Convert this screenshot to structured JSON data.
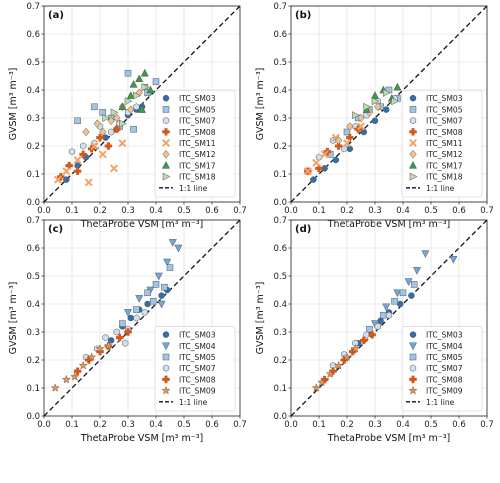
{
  "colors": {
    "ITC_SM03": "#2f6fad",
    "ITC_SM04": "#6fa8dc",
    "ITC_SM05": "#9fc5e8",
    "ITC_SM07": "#cfe0f3",
    "ITC_SM08": "#d2581b",
    "ITC_SM09": "#e8914f",
    "ITC_SM11": "#f0a36b",
    "ITC_SM12": "#f7c08f",
    "ITC_SM17": "#3a9a45",
    "ITC_SM18": "#b9ddb0"
  },
  "markers": {
    "ITC_SM03": "circle",
    "ITC_SM04": "triangle-down",
    "ITC_SM05": "square",
    "ITC_SM07": "hexagon",
    "ITC_SM08": "plus",
    "ITC_SM09": "star",
    "ITC_SM11": "x",
    "ITC_SM12": "diamond",
    "ITC_SM17": "triangle-up",
    "ITC_SM18": "triangle-right"
  },
  "chart_data": [
    {
      "type": "scatter",
      "panel_label": "(a)",
      "xlabel": "ThetaProbe VSM [m³ m⁻³]",
      "ylabel": "GVSM [m³ m⁻³]",
      "xlim": [
        0,
        0.7
      ],
      "ylim": [
        0,
        0.7
      ],
      "ticks": [
        0.0,
        0.1,
        0.2,
        0.3,
        0.4,
        0.5,
        0.6,
        0.7
      ],
      "grid": true,
      "legend_position": "bottom-right",
      "reference_line": "1:1 line",
      "series": [
        {
          "name": "ITC_SM03",
          "x": [
            0.08,
            0.12,
            0.15,
            0.22,
            0.26,
            0.3,
            0.33,
            0.35
          ],
          "y": [
            0.08,
            0.13,
            0.16,
            0.23,
            0.26,
            0.31,
            0.33,
            0.34
          ]
        },
        {
          "name": "ITC_SM05",
          "x": [
            0.12,
            0.18,
            0.21,
            0.24,
            0.27,
            0.3,
            0.36,
            0.4,
            0.37,
            0.32
          ],
          "y": [
            0.29,
            0.34,
            0.32,
            0.3,
            0.27,
            0.46,
            0.41,
            0.43,
            0.39,
            0.26
          ]
        },
        {
          "name": "ITC_SM07",
          "x": [
            0.1,
            0.14,
            0.18,
            0.2,
            0.24,
            0.27,
            0.3,
            0.33
          ],
          "y": [
            0.18,
            0.2,
            0.21,
            0.27,
            0.25,
            0.28,
            0.32,
            0.34
          ]
        },
        {
          "name": "ITC_SM08",
          "x": [
            0.06,
            0.09,
            0.12,
            0.14,
            0.17,
            0.2,
            0.23,
            0.26
          ],
          "y": [
            0.09,
            0.13,
            0.11,
            0.17,
            0.19,
            0.23,
            0.2,
            0.26
          ]
        },
        {
          "name": "ITC_SM11",
          "x": [
            0.05,
            0.08,
            0.12,
            0.16,
            0.18,
            0.21,
            0.25,
            0.28
          ],
          "y": [
            0.08,
            0.11,
            0.15,
            0.07,
            0.2,
            0.17,
            0.12,
            0.21
          ]
        },
        {
          "name": "ITC_SM12",
          "x": [
            0.15,
            0.19,
            0.21,
            0.24,
            0.26,
            0.28,
            0.31,
            0.34
          ],
          "y": [
            0.25,
            0.28,
            0.25,
            0.29,
            0.3,
            0.34,
            0.33,
            0.39
          ]
        },
        {
          "name": "ITC_SM17",
          "x": [
            0.28,
            0.31,
            0.34,
            0.36,
            0.38,
            0.35,
            0.32
          ],
          "y": [
            0.34,
            0.38,
            0.44,
            0.46,
            0.4,
            0.33,
            0.42
          ]
        },
        {
          "name": "ITC_SM18",
          "x": [
            0.22,
            0.25,
            0.28,
            0.3,
            0.33,
            0.36
          ],
          "y": [
            0.3,
            0.32,
            0.28,
            0.36,
            0.38,
            0.41
          ]
        }
      ]
    },
    {
      "type": "scatter",
      "panel_label": "(b)",
      "xlabel": "ThetaProbe VSM [m³ m⁻³]",
      "ylabel": "GVSM [m³ m⁻³]",
      "xlim": [
        0,
        0.7
      ],
      "ylim": [
        0,
        0.7
      ],
      "ticks": [
        0.0,
        0.1,
        0.2,
        0.3,
        0.4,
        0.5,
        0.6,
        0.7
      ],
      "grid": true,
      "legend_position": "bottom-right",
      "reference_line": "1:1 line",
      "series": [
        {
          "name": "ITC_SM03",
          "x": [
            0.08,
            0.12,
            0.16,
            0.21,
            0.26,
            0.3,
            0.34
          ],
          "y": [
            0.08,
            0.12,
            0.15,
            0.19,
            0.25,
            0.29,
            0.33
          ]
        },
        {
          "name": "ITC_SM05",
          "x": [
            0.14,
            0.2,
            0.24,
            0.28,
            0.32,
            0.35,
            0.38
          ],
          "y": [
            0.17,
            0.25,
            0.3,
            0.33,
            0.34,
            0.4,
            0.37
          ]
        },
        {
          "name": "ITC_SM07",
          "x": [
            0.1,
            0.15,
            0.19,
            0.23,
            0.27,
            0.31,
            0.37
          ],
          "y": [
            0.16,
            0.22,
            0.19,
            0.27,
            0.31,
            0.36,
            0.37
          ]
        },
        {
          "name": "ITC_SM08",
          "x": [
            0.06,
            0.1,
            0.13,
            0.17,
            0.21,
            0.24
          ],
          "y": [
            0.11,
            0.12,
            0.18,
            0.2,
            0.23,
            0.26
          ]
        },
        {
          "name": "ITC_SM11",
          "x": [
            0.06,
            0.09,
            0.12,
            0.16,
            0.2,
            0.25
          ],
          "y": [
            0.11,
            0.14,
            0.17,
            0.23,
            0.21,
            0.27
          ]
        },
        {
          "name": "ITC_SM12",
          "x": [
            0.17,
            0.21,
            0.25,
            0.28,
            0.31
          ],
          "y": [
            0.22,
            0.27,
            0.3,
            0.32,
            0.34
          ]
        },
        {
          "name": "ITC_SM17",
          "x": [
            0.27,
            0.3,
            0.33,
            0.36,
            0.38
          ],
          "y": [
            0.33,
            0.38,
            0.4,
            0.37,
            0.41
          ]
        },
        {
          "name": "ITC_SM18",
          "x": [
            0.23,
            0.27,
            0.3,
            0.34,
            0.37
          ],
          "y": [
            0.31,
            0.34,
            0.36,
            0.39,
            0.36
          ]
        }
      ]
    },
    {
      "type": "scatter",
      "panel_label": "(c)",
      "xlabel": "ThetaProbe VSM [m³ m⁻³]",
      "ylabel": "GVSM [m³ m⁻³]",
      "xlim": [
        0,
        0.7
      ],
      "ylim": [
        0,
        0.7
      ],
      "ticks": [
        0.0,
        0.1,
        0.2,
        0.3,
        0.4,
        0.5,
        0.6,
        0.7
      ],
      "grid": true,
      "legend_position": "bottom-right",
      "reference_line": "1:1 line",
      "series": [
        {
          "name": "ITC_SM03",
          "x": [
            0.24,
            0.28,
            0.31,
            0.34,
            0.37,
            0.42,
            0.44
          ],
          "y": [
            0.27,
            0.32,
            0.35,
            0.38,
            0.4,
            0.43,
            0.45
          ]
        },
        {
          "name": "ITC_SM04",
          "x": [
            0.3,
            0.34,
            0.38,
            0.41,
            0.44,
            0.46,
            0.48,
            0.42
          ],
          "y": [
            0.37,
            0.42,
            0.45,
            0.5,
            0.55,
            0.62,
            0.6,
            0.4
          ]
        },
        {
          "name": "ITC_SM05",
          "x": [
            0.28,
            0.33,
            0.37,
            0.4,
            0.43,
            0.45,
            0.39
          ],
          "y": [
            0.33,
            0.38,
            0.44,
            0.47,
            0.46,
            0.53,
            0.41
          ]
        },
        {
          "name": "ITC_SM07",
          "x": [
            0.15,
            0.19,
            0.22,
            0.26,
            0.3,
            0.33,
            0.36,
            0.29
          ],
          "y": [
            0.21,
            0.24,
            0.28,
            0.3,
            0.31,
            0.35,
            0.37,
            0.26
          ]
        },
        {
          "name": "ITC_SM08",
          "x": [
            0.12,
            0.16,
            0.2,
            0.23,
            0.27,
            0.3
          ],
          "y": [
            0.16,
            0.2,
            0.23,
            0.25,
            0.28,
            0.3
          ]
        },
        {
          "name": "ITC_SM09",
          "x": [
            0.04,
            0.08,
            0.11,
            0.14,
            0.17,
            0.2,
            0.23
          ],
          "y": [
            0.1,
            0.13,
            0.14,
            0.18,
            0.21,
            0.24,
            0.25
          ]
        }
      ]
    },
    {
      "type": "scatter",
      "panel_label": "(d)",
      "xlabel": "ThetaProbe VSM [m³ m⁻³]",
      "ylabel": "GVSM [m³ m⁻³]",
      "xlim": [
        0,
        0.7
      ],
      "ylim": [
        0,
        0.7
      ],
      "ticks": [
        0.0,
        0.1,
        0.2,
        0.3,
        0.4,
        0.5,
        0.6,
        0.7
      ],
      "grid": true,
      "legend_position": "bottom-right",
      "reference_line": "1:1 line",
      "series": [
        {
          "name": "ITC_SM03",
          "x": [
            0.24,
            0.28,
            0.32,
            0.35,
            0.39,
            0.43
          ],
          "y": [
            0.26,
            0.3,
            0.34,
            0.37,
            0.4,
            0.43
          ]
        },
        {
          "name": "ITC_SM04",
          "x": [
            0.3,
            0.34,
            0.38,
            0.42,
            0.45,
            0.48,
            0.58
          ],
          "y": [
            0.33,
            0.39,
            0.44,
            0.48,
            0.52,
            0.58,
            0.56
          ]
        },
        {
          "name": "ITC_SM05",
          "x": [
            0.28,
            0.33,
            0.37,
            0.4,
            0.44
          ],
          "y": [
            0.31,
            0.36,
            0.41,
            0.44,
            0.47
          ]
        },
        {
          "name": "ITC_SM07",
          "x": [
            0.15,
            0.19,
            0.23,
            0.27,
            0.31,
            0.35
          ],
          "y": [
            0.18,
            0.22,
            0.26,
            0.29,
            0.32,
            0.36
          ]
        },
        {
          "name": "ITC_SM08",
          "x": [
            0.12,
            0.15,
            0.19,
            0.22,
            0.26,
            0.29
          ],
          "y": [
            0.13,
            0.16,
            0.2,
            0.23,
            0.27,
            0.29
          ]
        },
        {
          "name": "ITC_SM09",
          "x": [
            0.09,
            0.11,
            0.14,
            0.17,
            0.2,
            0.23
          ],
          "y": [
            0.1,
            0.12,
            0.15,
            0.18,
            0.21,
            0.24
          ]
        }
      ]
    }
  ]
}
